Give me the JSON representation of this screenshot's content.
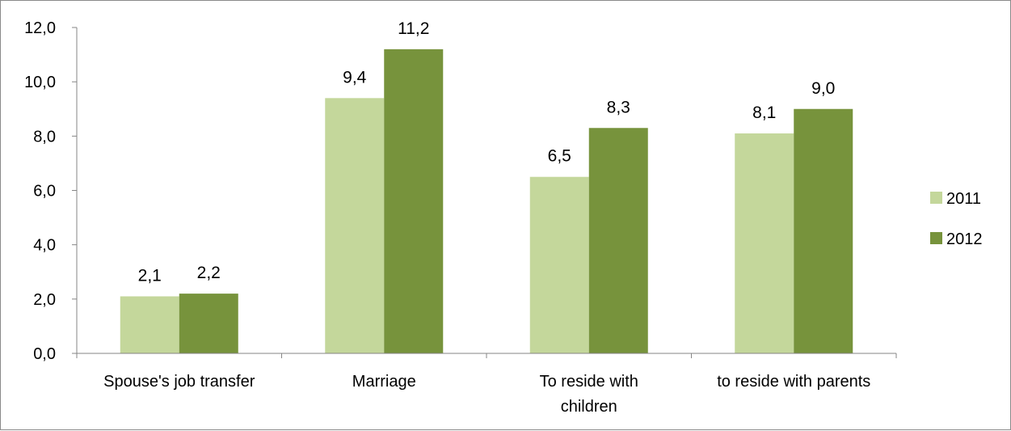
{
  "chart_data": {
    "type": "bar",
    "title": "",
    "xlabel": "",
    "ylabel": "",
    "categories": [
      [
        "Spouse's  job transfer"
      ],
      [
        "Marriage"
      ],
      [
        "To  reside with",
        "children"
      ],
      [
        "to reside with parents"
      ]
    ],
    "series": [
      {
        "name": "2011",
        "color": "#c4d79b",
        "values": [
          2.1,
          9.4,
          6.5,
          8.1
        ],
        "labels": [
          "2,1",
          "9,4",
          "6,5",
          "8,1"
        ]
      },
      {
        "name": "2012",
        "color": "#77933c",
        "values": [
          2.2,
          11.2,
          8.3,
          9.0
        ],
        "labels": [
          "2,2",
          "11,2",
          "8,3",
          "9,0"
        ]
      }
    ],
    "ylim": [
      0,
      12
    ],
    "yticks": [
      0,
      2,
      4,
      6,
      8,
      10,
      12
    ],
    "ytick_labels": [
      "0,0",
      "2,0",
      "4,0",
      "6,0",
      "8,0",
      "10,0",
      "12,0"
    ],
    "grid": false,
    "legend_position": "right"
  }
}
